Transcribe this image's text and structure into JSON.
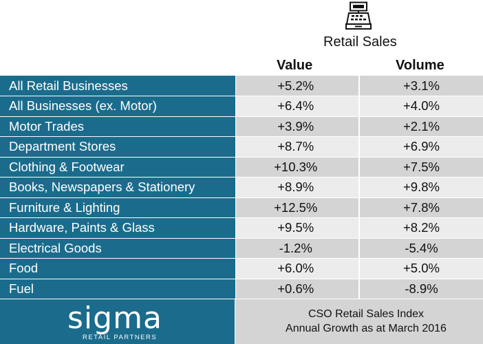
{
  "header": {
    "icon": "cash-register-icon",
    "title": "Retail Sales",
    "columns": [
      "Value",
      "Volume"
    ]
  },
  "rows": [
    {
      "label": "All Retail Businesses",
      "value": "+5.2%",
      "volume": "+3.1%"
    },
    {
      "label": "All Businesses (ex. Motor)",
      "value": "+6.4%",
      "volume": "+4.0%"
    },
    {
      "label": "Motor Trades",
      "value": "+3.9%",
      "volume": "+2.1%"
    },
    {
      "label": "Department Stores",
      "value": "+8.7%",
      "volume": "+6.9%"
    },
    {
      "label": "Clothing & Footwear",
      "value": "+10.3%",
      "volume": "+7.5%"
    },
    {
      "label": "Books, Newspapers & Stationery",
      "value": "+8.9%",
      "volume": "+9.8%"
    },
    {
      "label": "Furniture & Lighting",
      "value": "+12.5%",
      "volume": "+7.8%"
    },
    {
      "label": "Hardware, Paints & Glass",
      "value": "+9.5%",
      "volume": "+8.2%"
    },
    {
      "label": "Electrical Goods",
      "value": "-1.2%",
      "volume": "-5.4%"
    },
    {
      "label": "Food",
      "value": "+6.0%",
      "volume": "+5.0%"
    },
    {
      "label": "Fuel",
      "value": "+0.6%",
      "volume": "-8.9%"
    }
  ],
  "footer": {
    "logo_text": "sigma",
    "logo_subtext": "RETAIL PARTNERS",
    "source_line1": "CSO Retail Sales Index",
    "source_line2": "Annual Growth as at March 2016"
  },
  "colors": {
    "brand_teal": "#1b6c8c",
    "row_dark": "#d4d4d4",
    "row_light": "#ececec"
  }
}
